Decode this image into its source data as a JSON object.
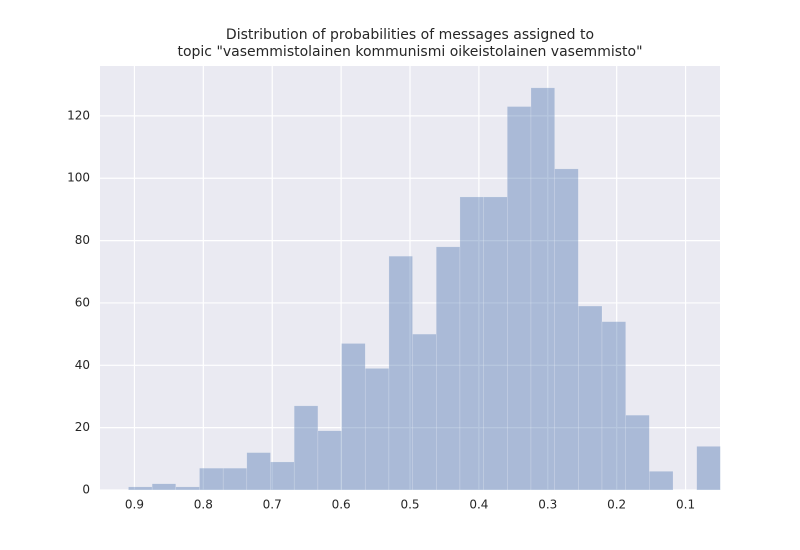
{
  "chart_data": {
    "type": "histogram",
    "title": [
      "Distribution of probabilities of messages assigned to",
      "topic \"vasemmistolainen kommunismi oikeistolainen vasemmisto\""
    ],
    "bins": [
      0.9087,
      0.8743,
      0.84,
      0.8056,
      0.7712,
      0.7369,
      0.7025,
      0.6681,
      0.6337,
      0.5994,
      0.565,
      0.5306,
      0.4963,
      0.4619,
      0.4275,
      0.3932,
      0.3588,
      0.3244,
      0.29,
      0.2557,
      0.2213,
      0.1869,
      0.1526,
      0.1182,
      0.0838,
      0.0495
    ],
    "values": [
      1,
      2,
      1,
      7,
      7,
      12,
      9,
      27,
      19,
      47,
      39,
      75,
      50,
      78,
      94,
      94,
      123,
      129,
      103,
      59,
      54,
      24,
      6,
      0,
      14
    ],
    "color": "#4c72b0",
    "xlim": [
      0.95,
      0.05
    ],
    "xticks": [
      0.9,
      0.8,
      0.7,
      0.6,
      0.5,
      0.4,
      0.3,
      0.2,
      0.1
    ],
    "ylim": [
      0,
      136
    ],
    "yticks": [
      0,
      20,
      40,
      60,
      80,
      100,
      120
    ],
    "grid": true
  }
}
